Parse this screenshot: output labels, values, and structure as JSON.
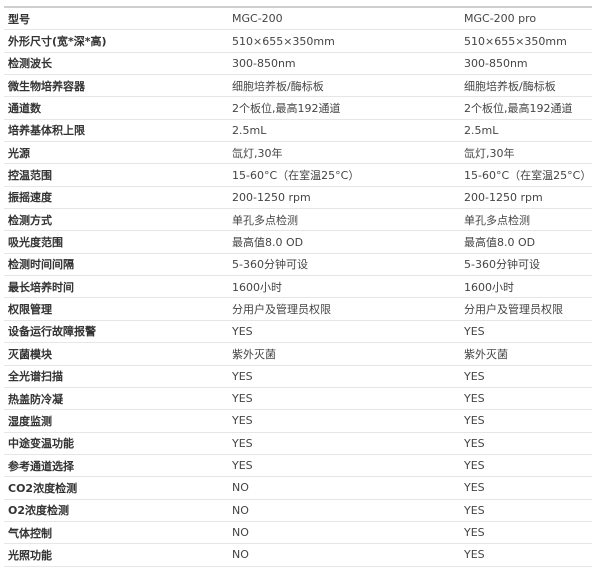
{
  "rows": [
    [
      "型号",
      "MGC-200",
      "MGC-200 pro"
    ],
    [
      "外形尺寸(宽*深*高)",
      "510×655×350mm",
      "510×655×350mm"
    ],
    [
      "检测波长",
      "300-850nm",
      "300-850nm"
    ],
    [
      "微生物培养容器",
      "细胞培养板/酶标板",
      "细胞培养板/酶标板"
    ],
    [
      "通道数",
      "2个板位,最高192通道",
      "2个板位,最高192通道"
    ],
    [
      "培养基体积上限",
      "2.5mL",
      "2.5mL"
    ],
    [
      "光源",
      "氙灯,30年",
      "氙灯,30年"
    ],
    [
      "控温范围",
      "15-60°C（在室温25°C）",
      "15-60°C（在室温25°C）"
    ],
    [
      "振摇速度",
      "200-1250 rpm",
      "200-1250 rpm"
    ],
    [
      "检测方式",
      "单孔多点检测",
      "单孔多点检测"
    ],
    [
      "吸光度范围",
      "最高值8.0 OD",
      "最高值8.0 OD"
    ],
    [
      "检测时间间隔",
      "5-360分钟可设",
      "5-360分钟可设"
    ],
    [
      "最长培养时间",
      "1600小时",
      "1600小时"
    ],
    [
      "权限管理",
      "分用户及管理员权限",
      "分用户及管理员权限"
    ],
    [
      "设备运行故障报警",
      "YES",
      "YES"
    ],
    [
      "灭菌模块",
      "紫外灭菌",
      "紫外灭菌"
    ],
    [
      "全光谱扫描",
      "YES",
      "YES"
    ],
    [
      "热盖防冷凝",
      "YES",
      "YES"
    ],
    [
      "湿度监测",
      "YES",
      "YES"
    ],
    [
      "中途变温功能",
      "YES",
      "YES"
    ],
    [
      "参考通道选择",
      "YES",
      "YES"
    ],
    [
      "CO2浓度检测",
      "NO",
      "YES"
    ],
    [
      "O2浓度检测",
      "NO",
      "YES"
    ],
    [
      "气体控制",
      "NO",
      "YES"
    ],
    [
      "光照功能",
      "NO",
      "YES"
    ]
  ]
}
